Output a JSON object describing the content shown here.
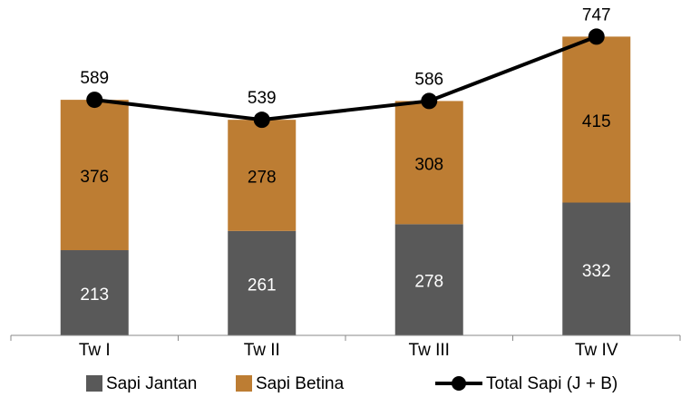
{
  "chart_data": {
    "type": "bar",
    "categories": [
      "Tw I",
      "Tw II",
      "Tw III",
      "Tw IV"
    ],
    "series": [
      {
        "name": "Sapi Jantan",
        "color": "#595959",
        "values": [
          213,
          261,
          278,
          332
        ]
      },
      {
        "name": "Sapi Betina",
        "color": "#bd7d33",
        "values": [
          376,
          278,
          308,
          415
        ]
      },
      {
        "name": "Total Sapi (J + B)",
        "color": "#000000",
        "type": "line",
        "values": [
          589,
          539,
          586,
          747
        ]
      }
    ],
    "stacked": true,
    "ylim": [
      0,
      800
    ]
  }
}
